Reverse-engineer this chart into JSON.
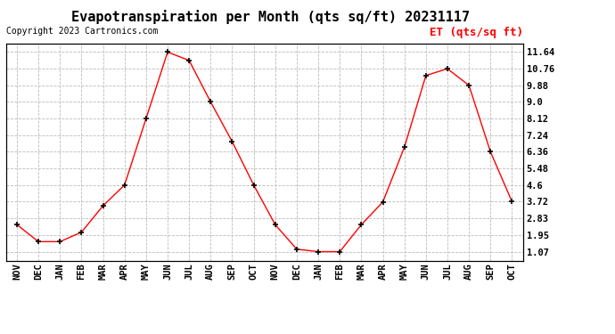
{
  "title": "Evapotranspiration per Month (qts sq/ft) 20231117",
  "copyright": "Copyright 2023 Cartronics.com",
  "legend_label": "ET (qts/sq ft)",
  "months": [
    "NOV",
    "DEC",
    "JAN",
    "FEB",
    "MAR",
    "APR",
    "MAY",
    "JUN",
    "JUL",
    "AUG",
    "SEP",
    "OCT",
    "NOV",
    "DEC",
    "JAN",
    "FEB",
    "MAR",
    "APR",
    "MAY",
    "JUN",
    "JUL",
    "AUG",
    "SEP",
    "OCT"
  ],
  "values": [
    2.5,
    1.6,
    1.6,
    2.1,
    3.5,
    4.6,
    8.12,
    11.64,
    11.2,
    9.0,
    6.9,
    4.6,
    2.5,
    1.2,
    1.07,
    1.07,
    2.5,
    3.7,
    6.6,
    10.4,
    10.76,
    9.88,
    6.36,
    3.72
  ],
  "line_color": "red",
  "marker": "+",
  "marker_color": "black",
  "grid_color": "#bbbbbb",
  "background_color": "white",
  "yticks": [
    1.07,
    1.95,
    2.83,
    3.72,
    4.6,
    5.48,
    6.36,
    7.24,
    8.12,
    9.0,
    9.88,
    10.76,
    11.64
  ],
  "ylim": [
    0.6,
    12.1
  ],
  "title_fontsize": 11,
  "copyright_fontsize": 7,
  "legend_fontsize": 9,
  "tick_fontsize": 7.5
}
